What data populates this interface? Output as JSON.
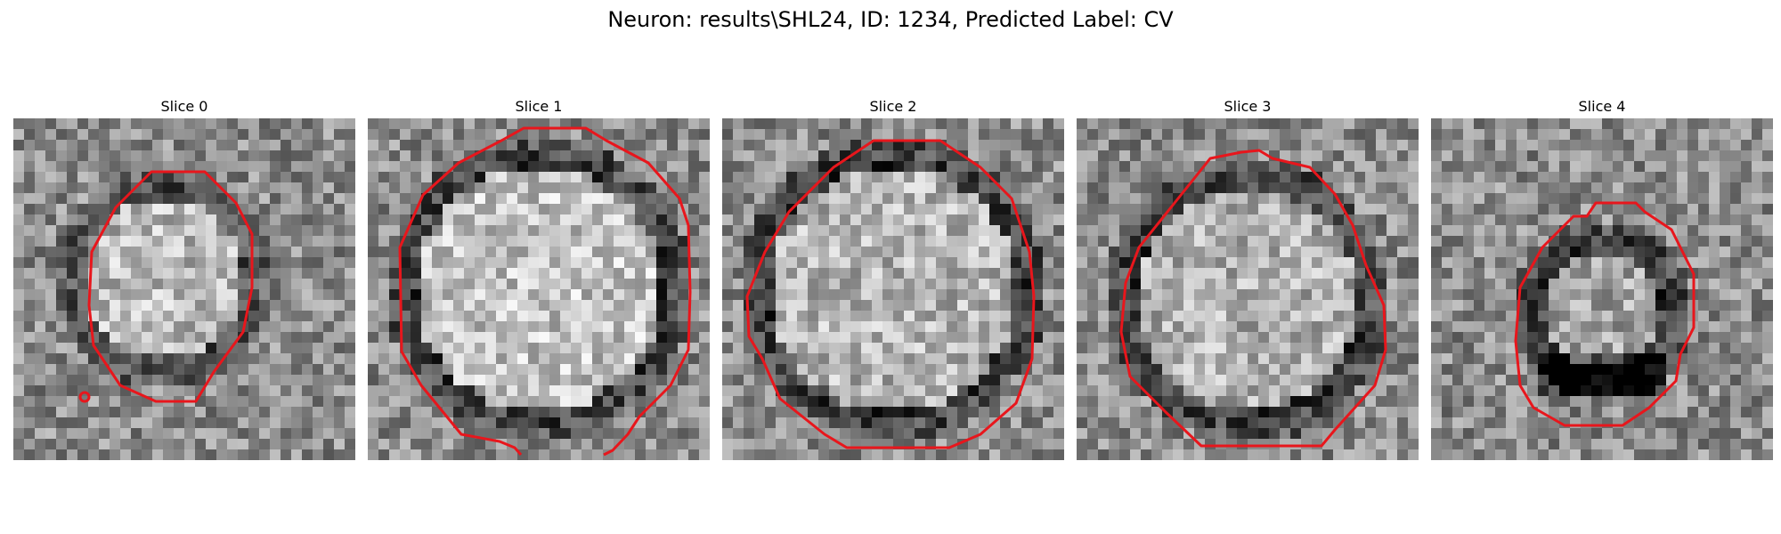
{
  "suptitle": "Neuron: results\\SHL24, ID: 1234, Predicted Label: CV",
  "panels": [
    {
      "title": "Slice 0"
    },
    {
      "title": "Slice 1"
    },
    {
      "title": "Slice 2"
    },
    {
      "title": "Slice 3"
    },
    {
      "title": "Slice 4"
    }
  ],
  "colors": {
    "outline": "#e8161c",
    "background": "#ffffff"
  }
}
